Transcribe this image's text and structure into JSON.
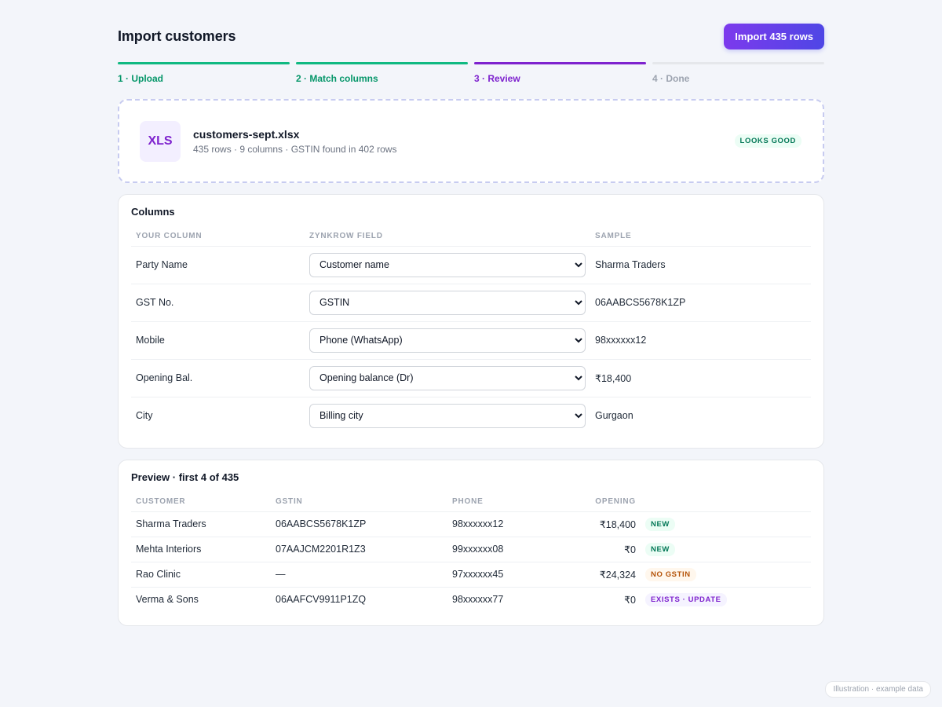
{
  "header": {
    "title": "Import customers",
    "import_button": "Import 435 rows"
  },
  "steps": [
    {
      "label": "1 · Upload",
      "state": "done"
    },
    {
      "label": "2 · Match columns",
      "state": "done"
    },
    {
      "label": "3 · Review",
      "state": "active"
    },
    {
      "label": "4 · Done",
      "state": "todo"
    }
  ],
  "file": {
    "icon": "XLS",
    "icon_name": "spreadsheet-file-icon",
    "name": "customers-sept.xlsx",
    "meta": "435 rows · 9 columns · GSTIN found in 402 rows",
    "status": "LOOKS GOOD"
  },
  "columns": {
    "title": "Columns",
    "headers": [
      "YOUR COLUMN",
      "ZYNKROW FIELD",
      "SAMPLE"
    ],
    "rows": [
      {
        "source": "Party Name",
        "field": "Customer name",
        "sample": "Sharma Traders"
      },
      {
        "source": "GST No.",
        "field": "GSTIN",
        "sample": "06AABCS5678K1ZP"
      },
      {
        "source": "Mobile",
        "field": "Phone (WhatsApp)",
        "sample": "98xxxxxx12"
      },
      {
        "source": "Opening Bal.",
        "field": "Opening balance (Dr)",
        "sample": "₹18,400"
      },
      {
        "source": "City",
        "field": "Billing city",
        "sample": "Gurgaon"
      }
    ]
  },
  "preview": {
    "title": "Preview · first 4 of 435",
    "headers": [
      "CUSTOMER",
      "GSTIN",
      "PHONE",
      "OPENING",
      ""
    ],
    "rows": [
      {
        "customer": "Sharma Traders",
        "gstin": "06AABCS5678K1ZP",
        "phone": "98xxxxxx12",
        "opening": "₹18,400",
        "status": "NEW",
        "kind": "new"
      },
      {
        "customer": "Mehta Interiors",
        "gstin": "07AAJCM2201R1Z3",
        "phone": "99xxxxxx08",
        "opening": "₹0",
        "status": "NEW",
        "kind": "new"
      },
      {
        "customer": "Rao Clinic",
        "gstin": "—",
        "phone": "97xxxxxx45",
        "opening": "₹24,324",
        "status": "NO GSTIN",
        "kind": "warn"
      },
      {
        "customer": "Verma & Sons",
        "gstin": "06AAFCV9911P1ZQ",
        "phone": "98xxxxxx77",
        "opening": "₹0",
        "status": "EXISTS · UPDATE",
        "kind": "exists"
      }
    ]
  },
  "footer_note": "Illustration · example data"
}
